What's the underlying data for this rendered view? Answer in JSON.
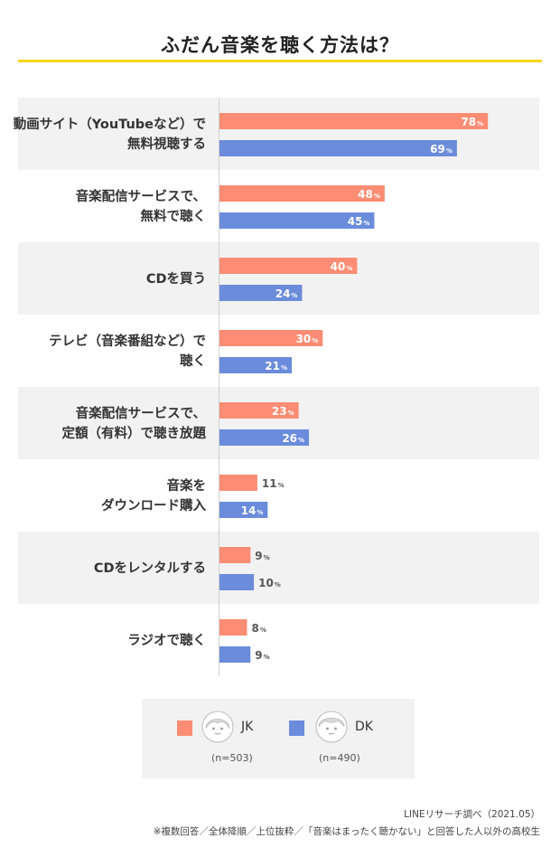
{
  "title": "ふだん音楽を聴く方法は？",
  "colors": {
    "jk": "#fc8d74",
    "dk": "#6b8cdb",
    "row_shade": "#f2f2f2",
    "title_rule": "#f4d91e"
  },
  "chart_data": {
    "type": "bar",
    "orientation": "horizontal",
    "unit": "%",
    "xlim": [
      0,
      100
    ],
    "grid": false,
    "legend_position": "bottom",
    "categories": [
      [
        "動画サイト（YouTubeなど）で",
        "無料視聴する"
      ],
      [
        "音楽配信サービスで、",
        "無料で聴く"
      ],
      [
        "CDを買う"
      ],
      [
        "テレビ（音楽番組など）で",
        "聴く"
      ],
      [
        "音楽配信サービスで、",
        "定額（有料）で聴き放題"
      ],
      [
        "音楽を",
        "ダウンロード購入"
      ],
      [
        "CDをレンタルする"
      ],
      [
        "ラジオで聴く"
      ]
    ],
    "series": [
      {
        "name": "JK",
        "n_label": "(n=503)",
        "values": [
          78,
          48,
          40,
          30,
          23,
          11,
          9,
          8
        ]
      },
      {
        "name": "DK",
        "n_label": "(n=490)",
        "values": [
          69,
          45,
          24,
          21,
          26,
          14,
          10,
          9
        ]
      }
    ]
  },
  "legend": {
    "jk": {
      "icon": "girl-avatar-icon",
      "name": "JK",
      "n": "(n=503)"
    },
    "dk": {
      "icon": "boy-avatar-icon",
      "name": "DK",
      "n": "(n=490)"
    }
  },
  "source": "LINEリサーチ調べ（2021.05）",
  "footnote": "※複数回答／全体降順／上位抜粋／「音楽はまったく聴かない」と回答した人以外の高校生"
}
